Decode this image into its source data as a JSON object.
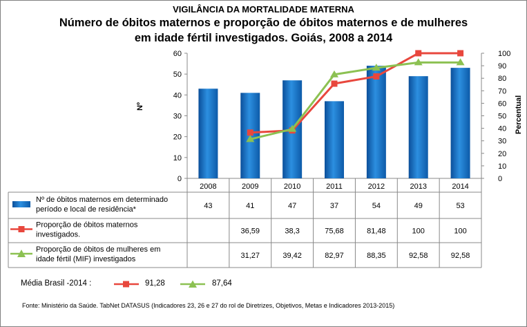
{
  "header": {
    "super_title": "VIGILÂNCIA DA MORTALIDADE MATERNA",
    "title_line1": "Número de óbitos maternos e proporção de óbitos maternos e de mulheres",
    "title_line2": "em idade fértil investigados. Goiás, 2008 a 2014"
  },
  "chart_data": {
    "type": "bar",
    "categories": [
      "2008",
      "2009",
      "2010",
      "2011",
      "2012",
      "2013",
      "2014"
    ],
    "y_left": {
      "label": "Nº",
      "range": [
        0,
        60
      ],
      "ticks": [
        0,
        10,
        20,
        30,
        40,
        50,
        60
      ]
    },
    "y_right": {
      "label": "Percentual",
      "range": [
        0,
        100
      ],
      "ticks": [
        0,
        10,
        20,
        30,
        40,
        50,
        60,
        70,
        80,
        90,
        100
      ]
    },
    "series": [
      {
        "name": "Nº de óbitos maternos em determinado período e local de residência*",
        "kind": "bar",
        "axis": "left",
        "color": "#1f7fd0",
        "values": [
          43,
          41,
          47,
          37,
          54,
          49,
          53
        ],
        "table_values": [
          "43",
          "41",
          "47",
          "37",
          "54",
          "49",
          "53"
        ]
      },
      {
        "name": "Proporção de óbitos maternos investigados.",
        "kind": "line",
        "marker": "square",
        "axis": "right",
        "color": "#e8473d",
        "values": [
          null,
          36.59,
          38.3,
          75.68,
          81.48,
          100,
          100
        ],
        "table_values": [
          "",
          "36,59",
          "38,3",
          "75,68",
          "81,48",
          "100",
          "100"
        ]
      },
      {
        "name": "Proporção de óbitos de mulheres em idade fértil (MIF) investigados",
        "kind": "line",
        "marker": "triangle",
        "axis": "right",
        "color": "#8cc152",
        "values": [
          null,
          31.27,
          39.42,
          82.97,
          88.35,
          92.58,
          92.58
        ],
        "table_values": [
          "",
          "31,27",
          "39,42",
          "82,97",
          "88,35",
          "92,58",
          "92,58"
        ]
      }
    ],
    "grid": false,
    "legend": "data table"
  },
  "brazil_mean": {
    "label": "Média Brasil -2014 :",
    "maternal_value": "91,28",
    "maternal_color": "#e8473d",
    "mif_value": "87,64",
    "mif_color": "#8cc152"
  },
  "source": "Fonte: Ministério da Saúde. TabNet DATASUS (Indicadores 23, 26 e 27  do rol de Diretrizes, Objetivos, Metas e Indicadores 2013-2015)"
}
